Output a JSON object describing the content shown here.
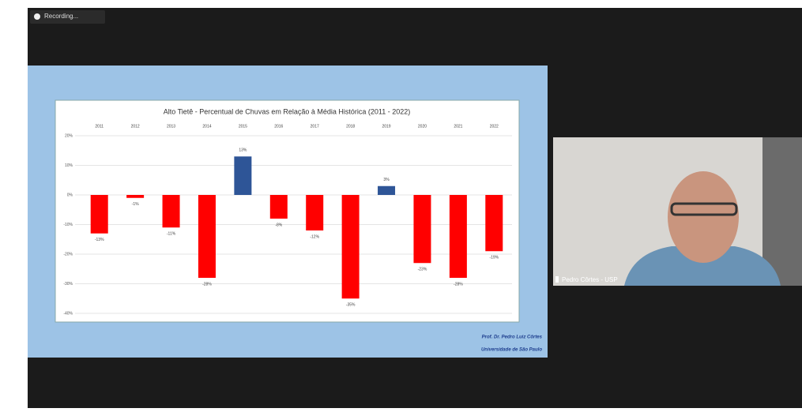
{
  "recording_label": "Recording...",
  "chart_data": {
    "type": "bar",
    "title": "Alto Tietê - Percentual de Chuvas em Relação à Média Histórica (2011 - 2022)",
    "categories": [
      "2011",
      "2012",
      "2013",
      "2014",
      "2015",
      "2016",
      "2017",
      "2018",
      "2019",
      "2020",
      "2021",
      "2022"
    ],
    "values": [
      -13,
      -1,
      -11,
      -28,
      13,
      -8,
      -12,
      -35,
      3,
      -23,
      -28,
      -19
    ],
    "value_labels": [
      "-13%",
      "-1%",
      "-11%",
      "-28%",
      "13%",
      "-8%",
      "-12%",
      "-35%",
      "3%",
      "-23%",
      "-28%",
      "-19%"
    ],
    "color_positive": "#2e5597",
    "color_negative": "#ff0000",
    "ylim": [
      -40,
      20
    ],
    "yticks": [
      {
        "value": 20,
        "label": "20%"
      },
      {
        "value": 10,
        "label": "10%"
      },
      {
        "value": 0,
        "label": "0%"
      },
      {
        "value": -10,
        "label": "-10%"
      },
      {
        "value": -20,
        "label": "-20%"
      },
      {
        "value": -30,
        "label": "-30%"
      },
      {
        "value": -40,
        "label": "-40%"
      }
    ],
    "grid": true
  },
  "credits": {
    "author": "Prof. Dr. Pedro Luiz Côrtes",
    "institution": "Universidade de São Paulo"
  },
  "participant_name": "Pedro Côrtes - USP"
}
